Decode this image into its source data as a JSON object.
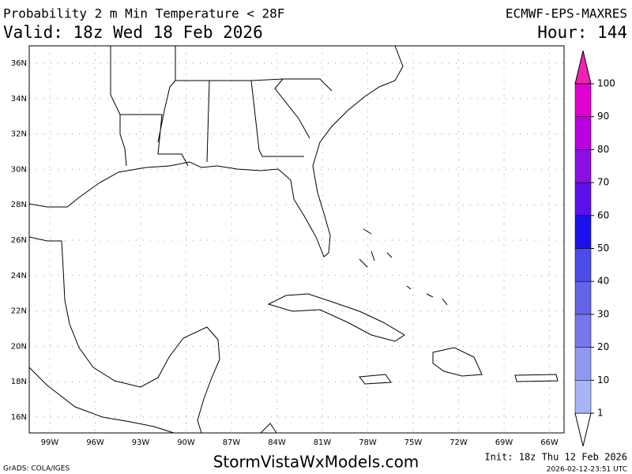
{
  "header": {
    "title": "Probability 2 m Min Temperature < 28F",
    "valid": "Valid: 18z Wed 18 Feb 2026",
    "model": "ECMWF-EPS-MAXRES",
    "hour": "Hour: 144"
  },
  "map": {
    "lat_labels": [
      "36N",
      "34N",
      "32N",
      "30N",
      "28N",
      "26N",
      "24N",
      "22N",
      "20N",
      "18N",
      "16N"
    ],
    "lon_labels": [
      "99W",
      "96W",
      "93W",
      "90W",
      "87W",
      "84W",
      "81W",
      "78W",
      "75W",
      "72W",
      "69W",
      "66W"
    ]
  },
  "colorbar": {
    "ticks": [
      1,
      10,
      20,
      30,
      40,
      50,
      60,
      70,
      80,
      90,
      100
    ],
    "colors": [
      "#a8b4f8",
      "#9098f0",
      "#7878ec",
      "#6464e8",
      "#4c4ce8",
      "#1a10f0",
      "#5c10ec",
      "#8c10e4",
      "#b800e0",
      "#e000d0",
      "#f020b8"
    ]
  },
  "footer": {
    "grads": "GrADS: COLA/IGES",
    "site": "StormVistaWxModels.com",
    "init": "Init: 18z Thu 12 Feb 2026",
    "stamp": "2026-02-12-23:51 UTC"
  }
}
